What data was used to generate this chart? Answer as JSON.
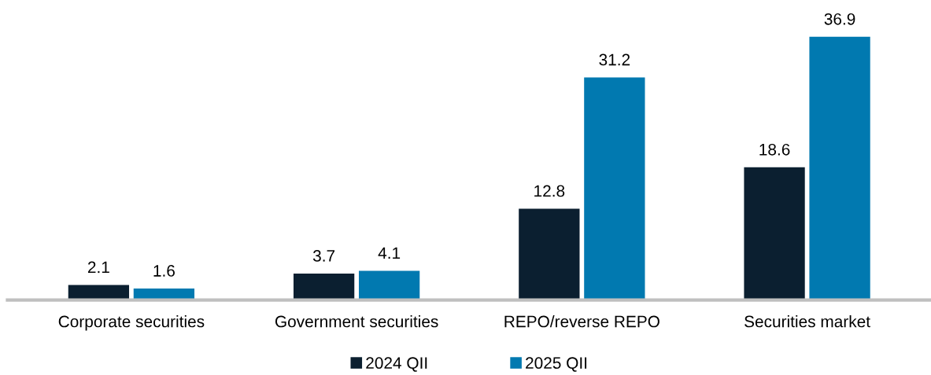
{
  "chart_data": {
    "type": "bar",
    "categories": [
      "Corporate securities",
      "Government securities",
      "REPO/reverse REPO",
      "Securities market"
    ],
    "series": [
      {
        "name": "2024 QII",
        "color": "#0b1f30",
        "values": [
          2.1,
          3.7,
          12.8,
          18.6
        ]
      },
      {
        "name": "2025 QII",
        "color": "#0179b0",
        "values": [
          1.6,
          4.1,
          31.2,
          36.9
        ]
      }
    ],
    "data_labels": true,
    "legend": "bottom"
  }
}
